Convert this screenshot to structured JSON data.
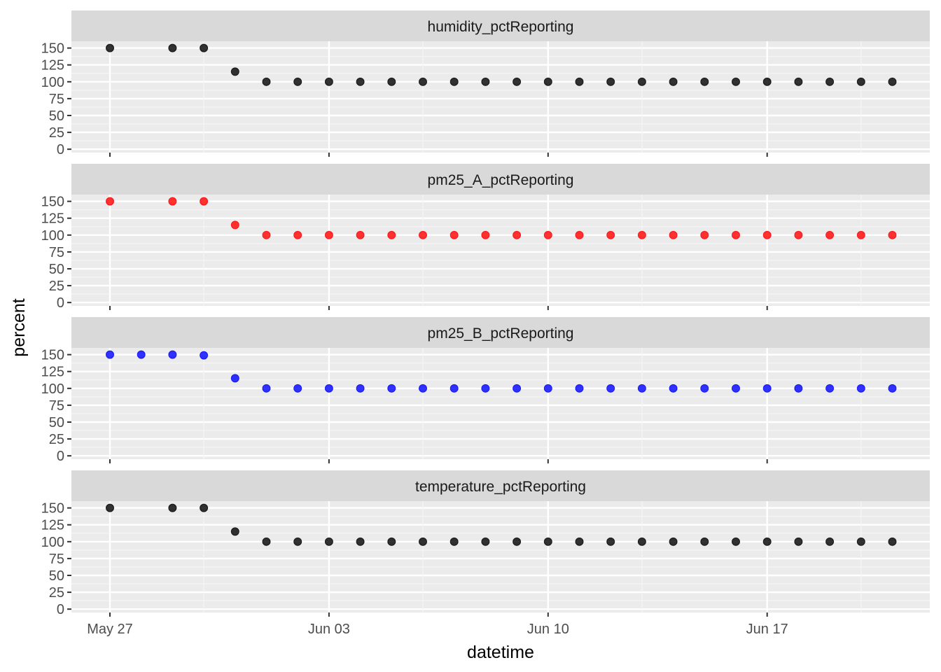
{
  "chart_data": {
    "type": "scatter",
    "xlabel": "datetime",
    "ylabel": "percent",
    "x_ticks": [
      "May 27",
      "Jun 03",
      "Jun 10",
      "Jun 17"
    ],
    "y_ticks": [
      0,
      25,
      50,
      75,
      100,
      125,
      150
    ],
    "ylim": [
      -5,
      160
    ],
    "xlim": [
      "2019-05-26",
      "2019-06-21"
    ],
    "grid": true,
    "facets": [
      {
        "name": "humidity_pctReporting",
        "color": "#000000",
        "points": [
          [
            "2019-05-27",
            150
          ],
          [
            "2019-05-29",
            150
          ],
          [
            "2019-05-30",
            150
          ],
          [
            "2019-05-31",
            115
          ],
          [
            "2019-06-01",
            100
          ],
          [
            "2019-06-02",
            100
          ],
          [
            "2019-06-03",
            100
          ],
          [
            "2019-06-04",
            100
          ],
          [
            "2019-06-05",
            100
          ],
          [
            "2019-06-06",
            100
          ],
          [
            "2019-06-07",
            100
          ],
          [
            "2019-06-08",
            100
          ],
          [
            "2019-06-09",
            100
          ],
          [
            "2019-06-10",
            100
          ],
          [
            "2019-06-11",
            100
          ],
          [
            "2019-06-12",
            100
          ],
          [
            "2019-06-13",
            100
          ],
          [
            "2019-06-14",
            100
          ],
          [
            "2019-06-15",
            100
          ],
          [
            "2019-06-16",
            100
          ],
          [
            "2019-06-17",
            100
          ],
          [
            "2019-06-18",
            100
          ],
          [
            "2019-06-19",
            100
          ],
          [
            "2019-06-20",
            100
          ],
          [
            "2019-06-21",
            100
          ]
        ]
      },
      {
        "name": "pm25_A_pctReporting",
        "color": "#ff0000",
        "points": [
          [
            "2019-05-27",
            150
          ],
          [
            "2019-05-29",
            150
          ],
          [
            "2019-05-30",
            150
          ],
          [
            "2019-05-31",
            115
          ],
          [
            "2019-06-01",
            100
          ],
          [
            "2019-06-02",
            100
          ],
          [
            "2019-06-03",
            100
          ],
          [
            "2019-06-04",
            100
          ],
          [
            "2019-06-05",
            100
          ],
          [
            "2019-06-06",
            100
          ],
          [
            "2019-06-07",
            100
          ],
          [
            "2019-06-08",
            100
          ],
          [
            "2019-06-09",
            100
          ],
          [
            "2019-06-10",
            100
          ],
          [
            "2019-06-11",
            100
          ],
          [
            "2019-06-12",
            100
          ],
          [
            "2019-06-13",
            100
          ],
          [
            "2019-06-14",
            100
          ],
          [
            "2019-06-15",
            100
          ],
          [
            "2019-06-16",
            100
          ],
          [
            "2019-06-17",
            100
          ],
          [
            "2019-06-18",
            100
          ],
          [
            "2019-06-19",
            100
          ],
          [
            "2019-06-20",
            100
          ],
          [
            "2019-06-21",
            100
          ]
        ]
      },
      {
        "name": "pm25_B_pctReporting",
        "color": "#0000ff",
        "points": [
          [
            "2019-05-27",
            150
          ],
          [
            "2019-05-28",
            150
          ],
          [
            "2019-05-29",
            150
          ],
          [
            "2019-05-30",
            149
          ],
          [
            "2019-05-31",
            115
          ],
          [
            "2019-06-01",
            100
          ],
          [
            "2019-06-02",
            100
          ],
          [
            "2019-06-03",
            100
          ],
          [
            "2019-06-04",
            100
          ],
          [
            "2019-06-05",
            100
          ],
          [
            "2019-06-06",
            100
          ],
          [
            "2019-06-07",
            100
          ],
          [
            "2019-06-08",
            100
          ],
          [
            "2019-06-09",
            100
          ],
          [
            "2019-06-10",
            100
          ],
          [
            "2019-06-11",
            100
          ],
          [
            "2019-06-12",
            100
          ],
          [
            "2019-06-13",
            100
          ],
          [
            "2019-06-14",
            100
          ],
          [
            "2019-06-15",
            100
          ],
          [
            "2019-06-16",
            100
          ],
          [
            "2019-06-17",
            100
          ],
          [
            "2019-06-18",
            100
          ],
          [
            "2019-06-19",
            100
          ],
          [
            "2019-06-20",
            100
          ],
          [
            "2019-06-21",
            100
          ]
        ]
      },
      {
        "name": "temperature_pctReporting",
        "color": "#000000",
        "points": [
          [
            "2019-05-27",
            150
          ],
          [
            "2019-05-29",
            150
          ],
          [
            "2019-05-30",
            150
          ],
          [
            "2019-05-31",
            115
          ],
          [
            "2019-06-01",
            100
          ],
          [
            "2019-06-02",
            100
          ],
          [
            "2019-06-03",
            100
          ],
          [
            "2019-06-04",
            100
          ],
          [
            "2019-06-05",
            100
          ],
          [
            "2019-06-06",
            100
          ],
          [
            "2019-06-07",
            100
          ],
          [
            "2019-06-08",
            100
          ],
          [
            "2019-06-09",
            100
          ],
          [
            "2019-06-10",
            100
          ],
          [
            "2019-06-11",
            100
          ],
          [
            "2019-06-12",
            100
          ],
          [
            "2019-06-13",
            100
          ],
          [
            "2019-06-14",
            100
          ],
          [
            "2019-06-15",
            100
          ],
          [
            "2019-06-16",
            100
          ],
          [
            "2019-06-17",
            100
          ],
          [
            "2019-06-18",
            100
          ],
          [
            "2019-06-19",
            100
          ],
          [
            "2019-06-20",
            100
          ],
          [
            "2019-06-21",
            100
          ]
        ]
      }
    ]
  }
}
